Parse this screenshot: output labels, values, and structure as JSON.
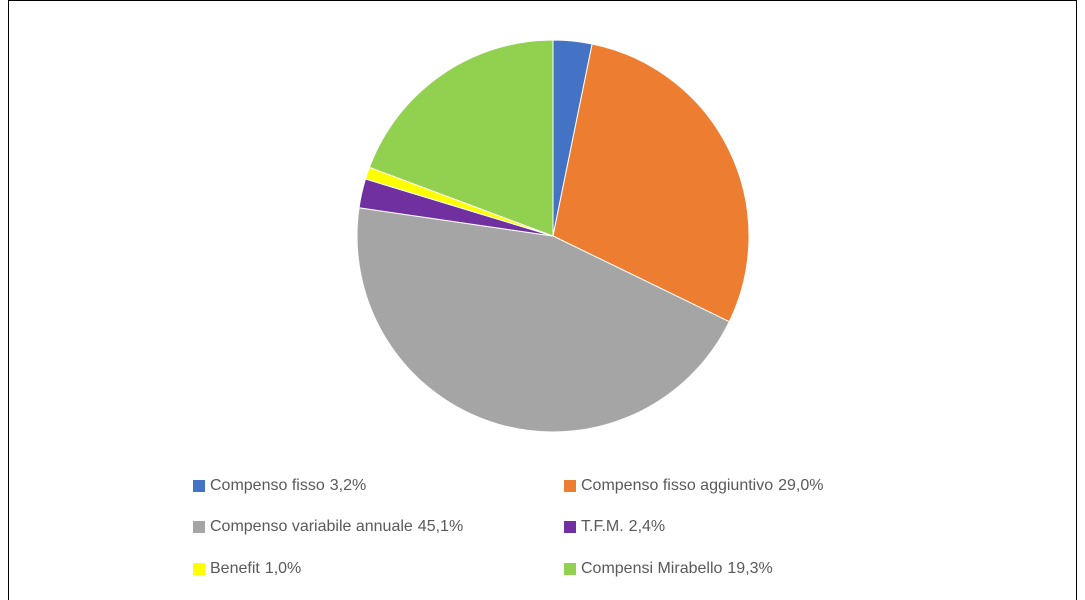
{
  "chart_data": {
    "type": "pie",
    "categories": [
      "Compenso fisso",
      "Compenso fisso aggiuntivo",
      "Compenso variabile annuale",
      "T.F.M.",
      "Benefit",
      "Compensi Mirabello"
    ],
    "values": [
      3.2,
      29.0,
      45.1,
      2.4,
      1.0,
      19.3
    ],
    "value_labels": [
      "3,2%",
      "29,0%",
      "45,1%",
      "2,4%",
      "1,0%",
      "19,3%"
    ],
    "colors": [
      "#4472c4",
      "#ed7d31",
      "#a5a5a5",
      "#7030a0",
      "#ffff00",
      "#92d050"
    ],
    "legend": "bottom"
  }
}
